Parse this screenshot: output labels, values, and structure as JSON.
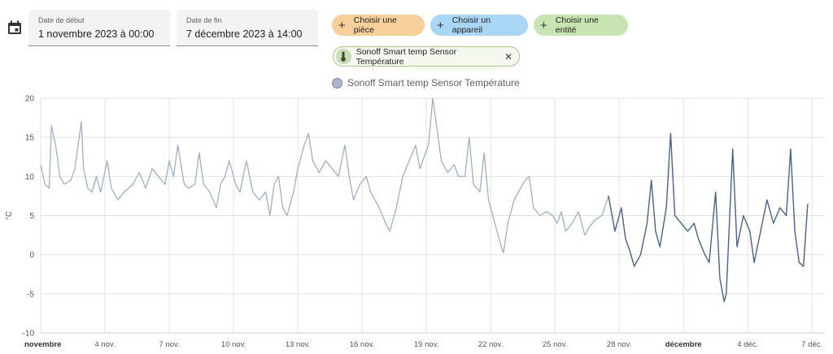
{
  "start_date": {
    "label": "Date de début",
    "value": "1 novembre 2023 à 00:00"
  },
  "end_date": {
    "label": "Date de fin",
    "value": "7 décembre 2023 à 14:00"
  },
  "targets": [
    {
      "label": "Choisir une pièce",
      "color": "#f6cf9a"
    },
    {
      "label": "Choisir un appareil",
      "color": "#a9d6f5"
    },
    {
      "label": "Choisir une entité",
      "color": "#c9e4b3"
    }
  ],
  "selected_entity": {
    "label": "Sonoff Smart temp Sensor Température",
    "icon": "thermometer-icon"
  },
  "chart_data": {
    "type": "line",
    "ylabel": "°C",
    "ylim": [
      -10,
      20
    ],
    "yticks": [
      "20",
      "15",
      "10",
      "5",
      "0",
      "-5",
      "-10"
    ],
    "legend": "top",
    "xticks": [
      {
        "label": "novembre",
        "day": 1,
        "major": true
      },
      {
        "label": "4 nov.",
        "day": 4
      },
      {
        "label": "7 nov.",
        "day": 7
      },
      {
        "label": "10 nov.",
        "day": 10
      },
      {
        "label": "13 nov.",
        "day": 13
      },
      {
        "label": "16 nov.",
        "day": 16
      },
      {
        "label": "19 nov.",
        "day": 19
      },
      {
        "label": "22 nov.",
        "day": 22
      },
      {
        "label": "25 nov.",
        "day": 25
      },
      {
        "label": "28 nov.",
        "day": 28
      },
      {
        "label": "décembre",
        "day": 31,
        "major": true
      },
      {
        "label": "4 déc.",
        "day": 34
      },
      {
        "label": "7 déc.",
        "day": 37
      }
    ],
    "series": [
      {
        "name": "Sonoff Smart temp Sensor Température",
        "points": [
          [
            1.0,
            11.5
          ],
          [
            1.2,
            9
          ],
          [
            1.4,
            8.5
          ],
          [
            1.5,
            16.5
          ],
          [
            1.7,
            14
          ],
          [
            1.9,
            10
          ],
          [
            2.1,
            9
          ],
          [
            2.4,
            9.5
          ],
          [
            2.6,
            11
          ],
          [
            2.9,
            17
          ],
          [
            3.0,
            11
          ],
          [
            3.2,
            8.5
          ],
          [
            3.4,
            8
          ],
          [
            3.6,
            10
          ],
          [
            3.8,
            8
          ],
          [
            4.1,
            12
          ],
          [
            4.3,
            8.5
          ],
          [
            4.6,
            7
          ],
          [
            4.9,
            8
          ],
          [
            5.3,
            9
          ],
          [
            5.6,
            10.5
          ],
          [
            5.9,
            8.5
          ],
          [
            6.2,
            11
          ],
          [
            6.5,
            10
          ],
          [
            6.8,
            9
          ],
          [
            7.0,
            12
          ],
          [
            7.2,
            10
          ],
          [
            7.4,
            14
          ],
          [
            7.7,
            9
          ],
          [
            7.9,
            8.5
          ],
          [
            8.2,
            9
          ],
          [
            8.4,
            13
          ],
          [
            8.6,
            9
          ],
          [
            8.9,
            8
          ],
          [
            9.2,
            6
          ],
          [
            9.4,
            9
          ],
          [
            9.6,
            10
          ],
          [
            9.8,
            12
          ],
          [
            10.1,
            9
          ],
          [
            10.3,
            8
          ],
          [
            10.6,
            12
          ],
          [
            10.9,
            8
          ],
          [
            11.2,
            7
          ],
          [
            11.5,
            8
          ],
          [
            11.7,
            5
          ],
          [
            11.9,
            9
          ],
          [
            12.1,
            10
          ],
          [
            12.3,
            6
          ],
          [
            12.5,
            5
          ],
          [
            12.8,
            8
          ],
          [
            13.0,
            11
          ],
          [
            13.3,
            14
          ],
          [
            13.5,
            15.5
          ],
          [
            13.7,
            12
          ],
          [
            14.0,
            10.5
          ],
          [
            14.3,
            12
          ],
          [
            14.6,
            11
          ],
          [
            14.9,
            10
          ],
          [
            15.2,
            14
          ],
          [
            15.4,
            10
          ],
          [
            15.6,
            7
          ],
          [
            15.9,
            9
          ],
          [
            16.2,
            10
          ],
          [
            16.4,
            8
          ],
          [
            16.8,
            6
          ],
          [
            17.1,
            4
          ],
          [
            17.3,
            3
          ],
          [
            17.6,
            6
          ],
          [
            17.9,
            10
          ],
          [
            18.2,
            12
          ],
          [
            18.5,
            14
          ],
          [
            18.7,
            11
          ],
          [
            19.1,
            14
          ],
          [
            19.3,
            20
          ],
          [
            19.5,
            16
          ],
          [
            19.7,
            12
          ],
          [
            20.0,
            10.5
          ],
          [
            20.3,
            11.5
          ],
          [
            20.5,
            10
          ],
          [
            20.8,
            10
          ],
          [
            21.0,
            15
          ],
          [
            21.2,
            9
          ],
          [
            21.5,
            8
          ],
          [
            21.7,
            13
          ],
          [
            21.9,
            7
          ],
          [
            22.1,
            5
          ],
          [
            22.3,
            3
          ],
          [
            22.5,
            1
          ],
          [
            22.6,
            0.2
          ],
          [
            22.8,
            4
          ],
          [
            23.1,
            7
          ],
          [
            23.4,
            8.5
          ],
          [
            23.6,
            9.5
          ],
          [
            23.8,
            10
          ],
          [
            24.0,
            6
          ],
          [
            24.3,
            5
          ],
          [
            24.6,
            5.5
          ],
          [
            24.9,
            5
          ],
          [
            25.1,
            4
          ],
          [
            25.3,
            5.5
          ],
          [
            25.5,
            3
          ],
          [
            25.8,
            4
          ],
          [
            26.1,
            5.5
          ],
          [
            26.4,
            2.5
          ],
          [
            26.6,
            3.5
          ],
          [
            26.9,
            4.5
          ],
          [
            27.2,
            5
          ],
          [
            27.5,
            7.5
          ],
          [
            27.8,
            3
          ],
          [
            28.1,
            6
          ],
          [
            28.3,
            2
          ],
          [
            28.5,
            0.5
          ],
          [
            28.7,
            -1.5
          ],
          [
            29.0,
            0
          ],
          [
            29.3,
            4
          ],
          [
            29.5,
            9.5
          ],
          [
            29.7,
            3
          ],
          [
            29.9,
            1
          ],
          [
            30.2,
            6
          ],
          [
            30.4,
            15.5
          ],
          [
            30.6,
            5
          ],
          [
            30.9,
            4
          ],
          [
            31.2,
            3
          ],
          [
            31.5,
            4
          ],
          [
            31.7,
            2
          ],
          [
            32.0,
            0
          ],
          [
            32.2,
            -1
          ],
          [
            32.5,
            8
          ],
          [
            32.7,
            -3
          ],
          [
            32.9,
            -6
          ],
          [
            33.0,
            -5
          ],
          [
            33.3,
            13.5
          ],
          [
            33.5,
            1
          ],
          [
            33.8,
            5
          ],
          [
            34.1,
            3
          ],
          [
            34.3,
            -1
          ],
          [
            34.6,
            3
          ],
          [
            34.9,
            7
          ],
          [
            35.2,
            4
          ],
          [
            35.5,
            6
          ],
          [
            35.8,
            5
          ],
          [
            36.0,
            13.5
          ],
          [
            36.2,
            3
          ],
          [
            36.4,
            -1
          ],
          [
            36.6,
            -1.5
          ],
          [
            36.8,
            6.5
          ]
        ]
      }
    ]
  }
}
